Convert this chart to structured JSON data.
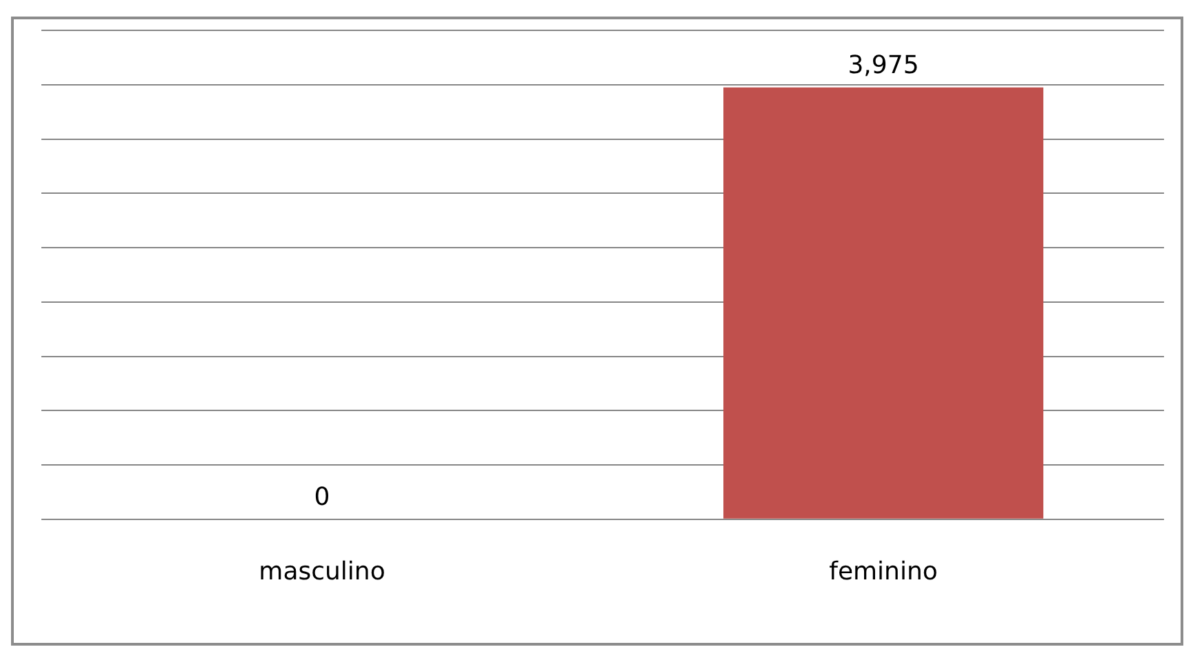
{
  "chart_data": {
    "type": "bar",
    "categories": [
      "masculino",
      "feminino"
    ],
    "values": [
      0,
      3975
    ],
    "value_labels": [
      "0",
      "3,975"
    ],
    "color": "#c0504d",
    "grid": "y",
    "tick_labels": "x",
    "legend": false
  }
}
